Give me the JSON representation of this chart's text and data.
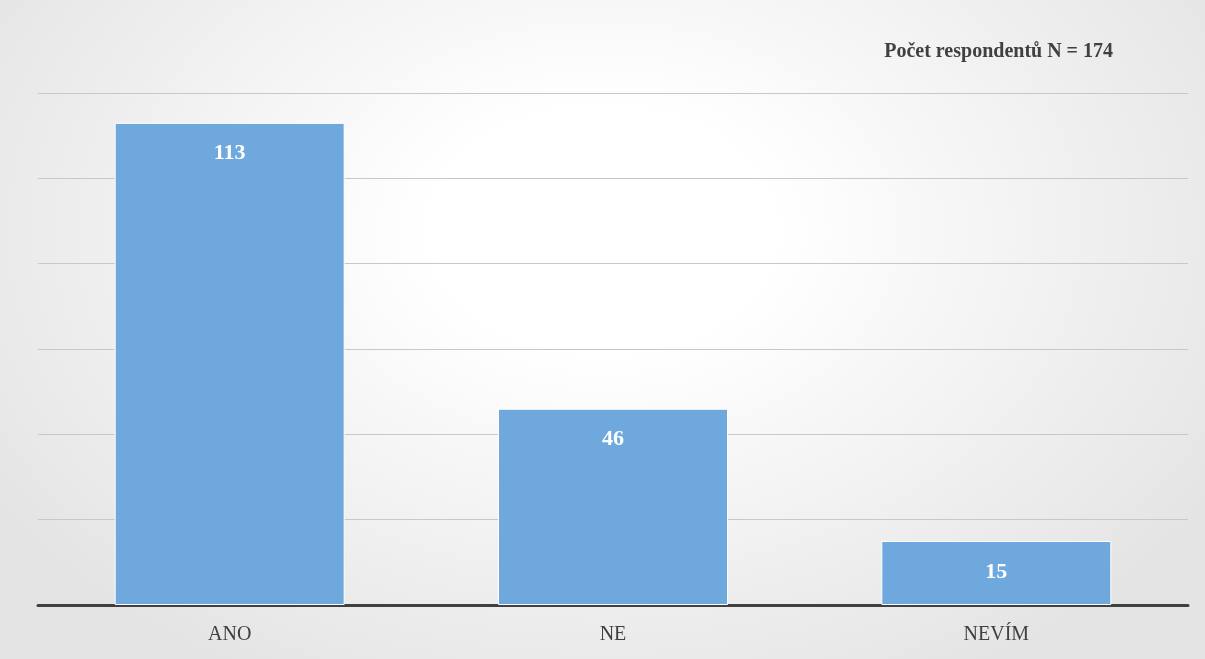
{
  "chart_data": {
    "type": "bar",
    "categories": [
      "ANO",
      "NE",
      "NEVÍM"
    ],
    "values": [
      113,
      46,
      15
    ],
    "color": "#6fa8dc",
    "ylim": [
      0,
      120
    ],
    "yticks": [
      {
        "value": 0,
        "label": null
      },
      {
        "value": 20,
        "label": null
      },
      {
        "value": 40,
        "label": null
      },
      {
        "value": 60,
        "label": null
      },
      {
        "value": 80,
        "label": null
      },
      {
        "value": 100,
        "label": null
      },
      {
        "value": 120,
        "label": null
      }
    ],
    "tick_labels": "x",
    "grid": "y",
    "data_labels": true,
    "annotations": [
      "Počet respondentů N = 174"
    ]
  }
}
